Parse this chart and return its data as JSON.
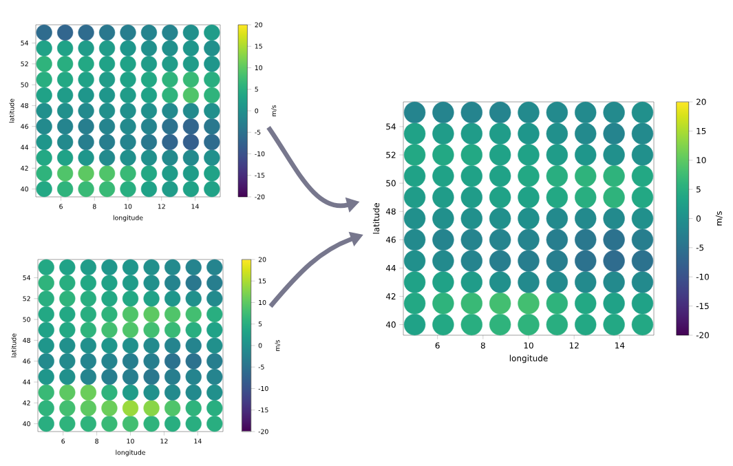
{
  "chart_data": [
    {
      "type": "scatter",
      "xlabel": "longitude",
      "ylabel": "latitude",
      "clabel": "m/s",
      "marker": "circle",
      "xlim": [
        4.5,
        15.5
      ],
      "ylim": [
        39.25,
        55.75
      ],
      "xticks": [
        6,
        8,
        10,
        12,
        14
      ],
      "yticks": [
        40,
        42,
        44,
        46,
        48,
        50,
        52,
        54
      ],
      "clim": [
        -20,
        20
      ],
      "cticks": [
        -20,
        -15,
        -10,
        -5,
        0,
        5,
        10,
        15,
        20
      ],
      "x": [
        5,
        6.25,
        7.5,
        8.75,
        10,
        11.25,
        12.5,
        13.75,
        15,
        5,
        6.25,
        7.5,
        8.75,
        10,
        11.25,
        12.5,
        13.75,
        15,
        5,
        6.25,
        7.5,
        8.75,
        10,
        11.25,
        12.5,
        13.75,
        15,
        5,
        6.25,
        7.5,
        8.75,
        10,
        11.25,
        12.5,
        13.75,
        15,
        5,
        6.25,
        7.5,
        8.75,
        10,
        11.25,
        12.5,
        13.75,
        15,
        5,
        6.25,
        7.5,
        8.75,
        10,
        11.25,
        12.5,
        13.75,
        15,
        5,
        6.25,
        7.5,
        8.75,
        10,
        11.25,
        12.5,
        13.75,
        15,
        5,
        6.25,
        7.5,
        8.75,
        10,
        11.25,
        12.5,
        13.75,
        15,
        5,
        6.25,
        7.5,
        8.75,
        10,
        11.25,
        12.5,
        13.75,
        15,
        5,
        6.25,
        7.5,
        8.75,
        10,
        11.25,
        12.5,
        13.75,
        15,
        5,
        6.25,
        7.5,
        8.75,
        10,
        11.25,
        12.5,
        13.75,
        15
      ],
      "values": [
        40,
        40,
        40,
        40,
        40,
        40,
        40,
        40,
        40,
        41.5,
        41.5,
        41.5,
        41.5,
        41.5,
        41.5,
        41.5,
        41.5,
        41.5,
        43,
        43,
        43,
        43,
        43,
        43,
        43,
        43,
        43,
        44.5,
        44.5,
        44.5,
        44.5,
        44.5,
        44.5,
        44.5,
        44.5,
        44.5,
        46,
        46,
        46,
        46,
        46,
        46,
        46,
        46,
        46,
        47.5,
        47.5,
        47.5,
        47.5,
        47.5,
        47.5,
        47.5,
        47.5,
        47.5,
        49,
        49,
        49,
        49,
        49,
        49,
        49,
        49,
        49,
        50.5,
        50.5,
        50.5,
        50.5,
        50.5,
        50.5,
        50.5,
        50.5,
        50.5,
        52,
        52,
        52,
        52,
        52,
        52,
        52,
        52,
        52,
        53.5,
        53.5,
        53.5,
        53.5,
        53.5,
        53.5,
        53.5,
        53.5,
        53.5,
        55,
        55,
        55,
        55,
        55,
        55,
        55,
        55,
        55
      ],
      "cvalues": [
        4,
        6,
        7,
        7,
        5,
        3,
        2,
        3,
        3,
        6,
        9,
        10,
        9,
        7,
        4,
        2,
        2,
        3,
        4,
        3,
        1,
        -1,
        0,
        0,
        -1,
        -1,
        0,
        1,
        -1,
        -3,
        -3,
        -2,
        -4,
        -7,
        -8,
        -6,
        -1,
        -2,
        -3,
        -2,
        -1,
        -2,
        -5,
        -7,
        -4,
        0,
        0,
        -1,
        0,
        0,
        0,
        -1,
        -1,
        0,
        3,
        2,
        1,
        1,
        2,
        3,
        6,
        9,
        6,
        5,
        4,
        3,
        2,
        3,
        4,
        6,
        7,
        5,
        6,
        5,
        4,
        3,
        3,
        2,
        2,
        2,
        1,
        3,
        3,
        2,
        2,
        1,
        0,
        0,
        1,
        0,
        -6,
        -7,
        -6,
        -4,
        -3,
        -2,
        -2,
        0,
        2
      ]
    },
    {
      "type": "scatter",
      "xlabel": "longitude",
      "ylabel": "latitude",
      "clabel": "m/s",
      "marker": "circle",
      "xlim": [
        4.5,
        15.5
      ],
      "ylim": [
        39.25,
        55.75
      ],
      "xticks": [
        6,
        8,
        10,
        12,
        14
      ],
      "yticks": [
        40,
        42,
        44,
        46,
        48,
        50,
        52,
        54
      ],
      "clim": [
        -20,
        20
      ],
      "cticks": [
        -20,
        -15,
        -10,
        -5,
        0,
        5,
        10,
        15,
        20
      ],
      "x": [
        5,
        6.25,
        7.5,
        8.75,
        10,
        11.25,
        12.5,
        13.75,
        15,
        5,
        6.25,
        7.5,
        8.75,
        10,
        11.25,
        12.5,
        13.75,
        15,
        5,
        6.25,
        7.5,
        8.75,
        10,
        11.25,
        12.5,
        13.75,
        15,
        5,
        6.25,
        7.5,
        8.75,
        10,
        11.25,
        12.5,
        13.75,
        15,
        5,
        6.25,
        7.5,
        8.75,
        10,
        11.25,
        12.5,
        13.75,
        15,
        5,
        6.25,
        7.5,
        8.75,
        10,
        11.25,
        12.5,
        13.75,
        15,
        5,
        6.25,
        7.5,
        8.75,
        10,
        11.25,
        12.5,
        13.75,
        15,
        5,
        6.25,
        7.5,
        8.75,
        10,
        11.25,
        12.5,
        13.75,
        15,
        5,
        6.25,
        7.5,
        8.75,
        10,
        11.25,
        12.5,
        13.75,
        15,
        5,
        6.25,
        7.5,
        8.75,
        10,
        11.25,
        12.5,
        13.75,
        15,
        5,
        6.25,
        7.5,
        8.75,
        10,
        11.25,
        12.5,
        13.75,
        15
      ],
      "values": [
        40,
        40,
        40,
        40,
        40,
        40,
        40,
        40,
        40,
        41.5,
        41.5,
        41.5,
        41.5,
        41.5,
        41.5,
        41.5,
        41.5,
        41.5,
        43,
        43,
        43,
        43,
        43,
        43,
        43,
        43,
        43,
        44.5,
        44.5,
        44.5,
        44.5,
        44.5,
        44.5,
        44.5,
        44.5,
        44.5,
        46,
        46,
        46,
        46,
        46,
        46,
        46,
        46,
        46,
        47.5,
        47.5,
        47.5,
        47.5,
        47.5,
        47.5,
        47.5,
        47.5,
        47.5,
        49,
        49,
        49,
        49,
        49,
        49,
        49,
        49,
        49,
        50.5,
        50.5,
        50.5,
        50.5,
        50.5,
        50.5,
        50.5,
        50.5,
        50.5,
        52,
        52,
        52,
        52,
        52,
        52,
        52,
        52,
        52,
        53.5,
        53.5,
        53.5,
        53.5,
        53.5,
        53.5,
        53.5,
        53.5,
        53.5,
        55,
        55,
        55,
        55,
        55,
        55,
        55,
        55,
        55
      ],
      "cvalues": [
        5,
        6,
        6,
        7,
        8,
        6,
        5,
        5,
        5,
        6,
        8,
        10,
        11,
        14,
        13,
        9,
        6,
        5,
        7,
        10,
        11,
        6,
        2,
        0,
        -1,
        -1,
        0,
        1,
        0,
        -2,
        -3,
        -3,
        -4,
        -3,
        -2,
        -2,
        -1,
        -1,
        -2,
        -2,
        -3,
        -3,
        -5,
        -5,
        -3,
        1,
        0,
        0,
        1,
        0,
        -1,
        -2,
        -2,
        0,
        3,
        4,
        6,
        8,
        9,
        8,
        7,
        5,
        3,
        4,
        4,
        5,
        6,
        9,
        10,
        9,
        8,
        5,
        5,
        6,
        5,
        4,
        4,
        3,
        1,
        0,
        -1,
        6,
        5,
        4,
        3,
        2,
        0,
        -2,
        -4,
        -3,
        4,
        3,
        2,
        1,
        1,
        0,
        -1,
        -2,
        -2
      ]
    },
    {
      "type": "scatter",
      "xlabel": "longitude",
      "ylabel": "latitude",
      "clabel": "m/s",
      "marker": "circle",
      "xlim": [
        4.5,
        15.5
      ],
      "ylim": [
        39.25,
        55.75
      ],
      "xticks": [
        6,
        8,
        10,
        12,
        14
      ],
      "yticks": [
        40,
        42,
        44,
        46,
        48,
        50,
        52,
        54
      ],
      "clim": [
        -20,
        20
      ],
      "cticks": [
        -20,
        -15,
        -10,
        -5,
        0,
        5,
        10,
        15,
        20
      ],
      "x": [
        5,
        6.25,
        7.5,
        8.75,
        10,
        11.25,
        12.5,
        13.75,
        15,
        5,
        6.25,
        7.5,
        8.75,
        10,
        11.25,
        12.5,
        13.75,
        15,
        5,
        6.25,
        7.5,
        8.75,
        10,
        11.25,
        12.5,
        13.75,
        15,
        5,
        6.25,
        7.5,
        8.75,
        10,
        11.25,
        12.5,
        13.75,
        15,
        5,
        6.25,
        7.5,
        8.75,
        10,
        11.25,
        12.5,
        13.75,
        15,
        5,
        6.25,
        7.5,
        8.75,
        10,
        11.25,
        12.5,
        13.75,
        15,
        5,
        6.25,
        7.5,
        8.75,
        10,
        11.25,
        12.5,
        13.75,
        15,
        5,
        6.25,
        7.5,
        8.75,
        10,
        11.25,
        12.5,
        13.75,
        15,
        5,
        6.25,
        7.5,
        8.75,
        10,
        11.25,
        12.5,
        13.75,
        15,
        5,
        6.25,
        7.5,
        8.75,
        10,
        11.25,
        12.5,
        13.75,
        15,
        5,
        6.25,
        7.5,
        8.75,
        10,
        11.25,
        12.5,
        13.75,
        15
      ],
      "values": [
        40,
        40,
        40,
        40,
        40,
        40,
        40,
        40,
        40,
        41.5,
        41.5,
        41.5,
        41.5,
        41.5,
        41.5,
        41.5,
        41.5,
        41.5,
        43,
        43,
        43,
        43,
        43,
        43,
        43,
        43,
        43,
        44.5,
        44.5,
        44.5,
        44.5,
        44.5,
        44.5,
        44.5,
        44.5,
        44.5,
        46,
        46,
        46,
        46,
        46,
        46,
        46,
        46,
        46,
        47.5,
        47.5,
        47.5,
        47.5,
        47.5,
        47.5,
        47.5,
        47.5,
        47.5,
        49,
        49,
        49,
        49,
        49,
        49,
        49,
        49,
        49,
        50.5,
        50.5,
        50.5,
        50.5,
        50.5,
        50.5,
        50.5,
        50.5,
        50.5,
        52,
        52,
        52,
        52,
        52,
        52,
        52,
        52,
        52,
        53.5,
        53.5,
        53.5,
        53.5,
        53.5,
        53.5,
        53.5,
        53.5,
        53.5,
        55,
        55,
        55,
        55,
        55,
        55,
        55,
        55,
        55
      ],
      "cvalues": [
        3,
        4,
        5,
        6,
        6,
        5,
        4,
        4,
        4,
        4,
        6,
        7,
        8,
        8,
        6,
        4,
        3,
        3,
        3,
        3,
        2,
        0,
        -1,
        -1,
        -1,
        -1,
        -1,
        0,
        -1,
        -2,
        -3,
        -3,
        -3,
        -5,
        -6,
        -5,
        -1,
        -2,
        -2,
        -2,
        -2,
        -3,
        -4,
        -5,
        -3,
        0,
        0,
        0,
        0,
        0,
        -1,
        -1,
        -1,
        0,
        2,
        2,
        2,
        3,
        3,
        4,
        5,
        6,
        4,
        3,
        3,
        3,
        3,
        4,
        5,
        6,
        6,
        4,
        4,
        4,
        4,
        3,
        3,
        2,
        1,
        0,
        0,
        3,
        2,
        2,
        2,
        1,
        0,
        -1,
        -2,
        -1,
        -2,
        -2,
        -2,
        -2,
        -1,
        -1,
        -1,
        -1,
        0
      ]
    }
  ]
}
